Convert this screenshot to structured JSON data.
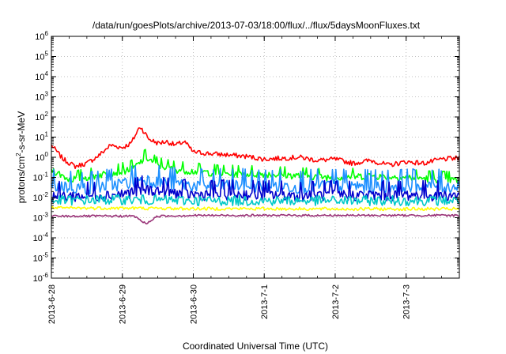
{
  "chart_data": {
    "type": "line",
    "title": "/data/run/goesPlots/archive/2013-07-03/18:00/flux/../flux/5daysMoonFluxes.txt",
    "xlabel": "Coordinated Universal Time (UTC)",
    "ylabel": {
      "base": "protons/cm",
      "exp": "2",
      "rest": "-s-sr-MeV"
    },
    "y_scale": "log",
    "ylim": [
      1e-06,
      1000000.0
    ],
    "xlim_days": [
      "2013-06-28 00:00",
      "2013-07-03 18:00"
    ],
    "grid": true,
    "legend": "none",
    "x_ticks": [
      "2013-6-28",
      "2013-6-29",
      "2013-6-30",
      "2013-7-1",
      "2013-7-2",
      "2013-7-3"
    ],
    "y_ticks": [
      {
        "exp": "-6",
        "v": -6
      },
      {
        "exp": "-5",
        "v": -5
      },
      {
        "exp": "-4",
        "v": -4
      },
      {
        "exp": "-3",
        "v": -3
      },
      {
        "exp": "-2",
        "v": -2
      },
      {
        "exp": "-1",
        "v": -1
      },
      {
        "exp": "0",
        "v": 0
      },
      {
        "exp": "1",
        "v": 1
      },
      {
        "exp": "2",
        "v": 2
      },
      {
        "exp": "3",
        "v": 3
      },
      {
        "exp": "4",
        "v": 4
      },
      {
        "exp": "5",
        "v": 5
      },
      {
        "exp": "6",
        "v": 6
      }
    ],
    "y_tick_base": "10",
    "series": [
      {
        "color": "#ff0000",
        "x": [
          "2013-06-28 00:00",
          "2013-06-28 04:00",
          "2013-06-28 08:00",
          "2013-06-28 12:00",
          "2013-06-28 16:00",
          "2013-06-28 20:00",
          "2013-06-29 00:00",
          "2013-06-29 03:00",
          "2013-06-29 06:00",
          "2013-06-29 09:00",
          "2013-06-29 12:00",
          "2013-06-29 15:00",
          "2013-06-29 18:00",
          "2013-06-29 21:00",
          "2013-06-30 00:00",
          "2013-06-30 06:00",
          "2013-06-30 12:00",
          "2013-06-30 18:00",
          "2013-07-01 00:00",
          "2013-07-01 06:00",
          "2013-07-01 12:00",
          "2013-07-01 18:00",
          "2013-07-02 00:00",
          "2013-07-02 06:00",
          "2013-07-02 12:00",
          "2013-07-02 18:00",
          "2013-07-03 00:00",
          "2013-07-03 06:00",
          "2013-07-03 12:00",
          "2013-07-03 18:00"
        ],
        "y": [
          4.0,
          0.8,
          0.35,
          0.5,
          1.2,
          4.0,
          3.0,
          5.0,
          35.0,
          8.0,
          5.0,
          6.0,
          4.0,
          6.0,
          1.8,
          1.5,
          1.3,
          1.1,
          0.8,
          0.9,
          1.0,
          0.7,
          0.8,
          0.5,
          0.7,
          0.4,
          0.6,
          0.5,
          0.8,
          0.9
        ]
      },
      {
        "color": "#00ff00",
        "x": [
          "2013-06-28 00:00",
          "2013-06-28 06:00",
          "2013-06-28 12:00",
          "2013-06-28 18:00",
          "2013-06-29 00:00",
          "2013-06-29 04:00",
          "2013-06-29 08:00",
          "2013-06-29 12:00",
          "2013-06-29 18:00",
          "2013-06-30 00:00",
          "2013-06-30 12:00",
          "2013-07-01 00:00",
          "2013-07-01 12:00",
          "2013-07-02 00:00",
          "2013-07-02 12:00",
          "2013-07-03 00:00",
          "2013-07-03 12:00",
          "2013-07-03 18:00"
        ],
        "y": [
          0.25,
          0.08,
          0.1,
          0.15,
          0.2,
          0.3,
          1.0,
          0.4,
          0.25,
          0.2,
          0.15,
          0.15,
          0.12,
          0.1,
          0.12,
          0.1,
          0.08,
          0.07
        ]
      },
      {
        "color": "#1e90ff",
        "x": [
          "2013-06-28 00:00",
          "2013-06-28 12:00",
          "2013-06-29 00:00",
          "2013-06-29 08:00",
          "2013-06-29 16:00",
          "2013-06-30 00:00",
          "2013-06-30 12:00",
          "2013-07-01 00:00",
          "2013-07-01 12:00",
          "2013-07-02 00:00",
          "2013-07-02 12:00",
          "2013-07-03 00:00",
          "2013-07-03 18:00"
        ],
        "y": [
          0.04,
          0.03,
          0.05,
          0.08,
          0.05,
          0.04,
          0.04,
          0.04,
          0.035,
          0.04,
          0.035,
          0.04,
          0.035
        ]
      },
      {
        "color": "#0000cd",
        "x": [
          "2013-06-28 00:00",
          "2013-06-28 12:00",
          "2013-06-29 00:00",
          "2013-06-29 08:00",
          "2013-06-29 16:00",
          "2013-06-30 00:00",
          "2013-06-30 12:00",
          "2013-07-01 00:00",
          "2013-07-01 12:00",
          "2013-07-02 00:00",
          "2013-07-02 12:00",
          "2013-07-03 00:00",
          "2013-07-03 18:00"
        ],
        "y": [
          0.012,
          0.012,
          0.015,
          0.025,
          0.018,
          0.014,
          0.015,
          0.014,
          0.013,
          0.014,
          0.013,
          0.014,
          0.013
        ]
      },
      {
        "color": "#00c8c8",
        "x": [
          "2013-06-28 00:00",
          "2013-06-29 00:00",
          "2013-06-30 00:00",
          "2013-07-01 00:00",
          "2013-07-02 00:00",
          "2013-07-03 00:00",
          "2013-07-03 18:00"
        ],
        "y": [
          0.007,
          0.008,
          0.007,
          0.007,
          0.007,
          0.007,
          0.007
        ]
      },
      {
        "color": "#ffff00",
        "x": [
          "2013-06-28 00:00",
          "2013-06-29 00:00",
          "2013-06-30 00:00",
          "2013-07-01 00:00",
          "2013-07-02 00:00",
          "2013-07-03 00:00",
          "2013-07-03 18:00"
        ],
        "y": [
          0.003,
          0.003,
          0.0028,
          0.0028,
          0.0027,
          0.0027,
          0.0027
        ]
      },
      {
        "color": "#993377",
        "x": [
          "2013-06-28 00:00",
          "2013-06-29 00:00",
          "2013-06-29 04:00",
          "2013-06-29 08:00",
          "2013-06-29 12:00",
          "2013-06-30 00:00",
          "2013-07-01 00:00",
          "2013-07-02 00:00",
          "2013-07-03 00:00",
          "2013-07-03 18:00"
        ],
        "y": [
          0.0012,
          0.0012,
          0.0012,
          0.0005,
          0.0012,
          0.0013,
          0.0013,
          0.0013,
          0.0013,
          0.0013
        ]
      }
    ]
  }
}
